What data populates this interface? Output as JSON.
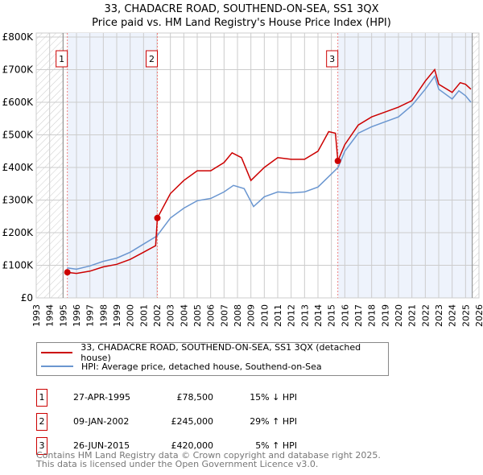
{
  "title": "33, CHADACRE ROAD, SOUTHEND-ON-SEA, SS1 3QX",
  "subtitle": "Price paid vs. HM Land Registry's House Price Index (HPI)",
  "colors": {
    "property": "#cc0000",
    "hpi": "#6a96d0"
  },
  "chart_data": {
    "type": "line",
    "xlim": [
      1993,
      2026
    ],
    "ylim": [
      0,
      800000
    ],
    "x_ticks": [
      "1993",
      "1994",
      "1995",
      "1996",
      "1997",
      "1998",
      "1999",
      "2000",
      "2001",
      "2002",
      "2003",
      "2004",
      "2005",
      "2006",
      "2007",
      "2008",
      "2009",
      "2010",
      "2011",
      "2012",
      "2013",
      "2014",
      "2015",
      "2016",
      "2017",
      "2018",
      "2019",
      "2020",
      "2021",
      "2022",
      "2023",
      "2024",
      "2025",
      "2026"
    ],
    "y_ticks": [
      {
        "v": 0,
        "label": "£0"
      },
      {
        "v": 100000,
        "label": "£100K"
      },
      {
        "v": 200000,
        "label": "£200K"
      },
      {
        "v": 300000,
        "label": "£300K"
      },
      {
        "v": 400000,
        "label": "£400K"
      },
      {
        "v": 500000,
        "label": "£500K"
      },
      {
        "v": 600000,
        "label": "£600K"
      },
      {
        "v": 700000,
        "label": "£700K"
      },
      {
        "v": 800000,
        "label": "£800K"
      }
    ],
    "series": [
      {
        "name": "33, CHADACRE ROAD, SOUTHEND-ON-SEA, SS1 3QX (detached house)",
        "points": [
          [
            1995.3,
            78500
          ],
          [
            1996,
            75000
          ],
          [
            1997,
            82000
          ],
          [
            1998,
            95000
          ],
          [
            1999,
            103000
          ],
          [
            2000,
            118000
          ],
          [
            2001,
            140000
          ],
          [
            2001.9,
            160000
          ],
          [
            2002.03,
            245000
          ],
          [
            2003,
            320000
          ],
          [
            2004,
            360000
          ],
          [
            2005,
            390000
          ],
          [
            2006,
            390000
          ],
          [
            2007,
            415000
          ],
          [
            2007.6,
            445000
          ],
          [
            2008.3,
            430000
          ],
          [
            2009,
            360000
          ],
          [
            2010,
            400000
          ],
          [
            2011,
            430000
          ],
          [
            2012,
            425000
          ],
          [
            2013,
            425000
          ],
          [
            2014,
            450000
          ],
          [
            2014.8,
            510000
          ],
          [
            2015.3,
            505000
          ],
          [
            2015.48,
            420000
          ],
          [
            2016,
            470000
          ],
          [
            2017,
            530000
          ],
          [
            2018,
            555000
          ],
          [
            2019,
            570000
          ],
          [
            2020,
            585000
          ],
          [
            2021,
            605000
          ],
          [
            2022,
            665000
          ],
          [
            2022.7,
            700000
          ],
          [
            2023,
            655000
          ],
          [
            2024,
            630000
          ],
          [
            2024.6,
            660000
          ],
          [
            2025,
            655000
          ],
          [
            2025.4,
            640000
          ]
        ]
      },
      {
        "name": "HPI: Average price, detached house, Southend-on-Sea",
        "points": [
          [
            1995.3,
            92000
          ],
          [
            1996,
            88000
          ],
          [
            1997,
            98000
          ],
          [
            1998,
            112000
          ],
          [
            1999,
            122000
          ],
          [
            2000,
            140000
          ],
          [
            2001,
            165000
          ],
          [
            2002,
            190000
          ],
          [
            2003,
            245000
          ],
          [
            2004,
            275000
          ],
          [
            2005,
            298000
          ],
          [
            2006,
            305000
          ],
          [
            2007,
            325000
          ],
          [
            2007.7,
            345000
          ],
          [
            2008.5,
            335000
          ],
          [
            2009.2,
            280000
          ],
          [
            2010,
            310000
          ],
          [
            2011,
            325000
          ],
          [
            2012,
            322000
          ],
          [
            2013,
            325000
          ],
          [
            2014,
            340000
          ],
          [
            2015,
            380000
          ],
          [
            2015.5,
            400000
          ],
          [
            2016,
            450000
          ],
          [
            2017,
            505000
          ],
          [
            2018,
            525000
          ],
          [
            2019,
            540000
          ],
          [
            2020,
            555000
          ],
          [
            2021,
            590000
          ],
          [
            2022,
            640000
          ],
          [
            2022.7,
            680000
          ],
          [
            2023,
            640000
          ],
          [
            2024,
            610000
          ],
          [
            2024.5,
            635000
          ],
          [
            2025,
            620000
          ],
          [
            2025.4,
            600000
          ]
        ]
      }
    ],
    "sales": [
      {
        "label": "1",
        "x": 1995.32,
        "y": 78500
      },
      {
        "label": "2",
        "x": 2002.03,
        "y": 245000
      },
      {
        "label": "3",
        "x": 2015.48,
        "y": 420000
      }
    ],
    "data_range": [
      1995,
      2025.5
    ]
  },
  "legend": {
    "property": "33, CHADACRE ROAD, SOUTHEND-ON-SEA, SS1 3QX (detached house)",
    "hpi": "HPI: Average price, detached house, Southend-on-Sea"
  },
  "transactions": [
    {
      "num": "1",
      "date": "27-APR-1995",
      "price": "£78,500",
      "hpi": "15% ↓ HPI"
    },
    {
      "num": "2",
      "date": "09-JAN-2002",
      "price": "£245,000",
      "hpi": "29% ↑ HPI"
    },
    {
      "num": "3",
      "date": "26-JUN-2015",
      "price": "£420,000",
      "hpi": "5% ↑ HPI"
    }
  ],
  "footer": [
    "Contains HM Land Registry data © Crown copyright and database right 2025.",
    "This data is licensed under the Open Government Licence v3.0."
  ]
}
